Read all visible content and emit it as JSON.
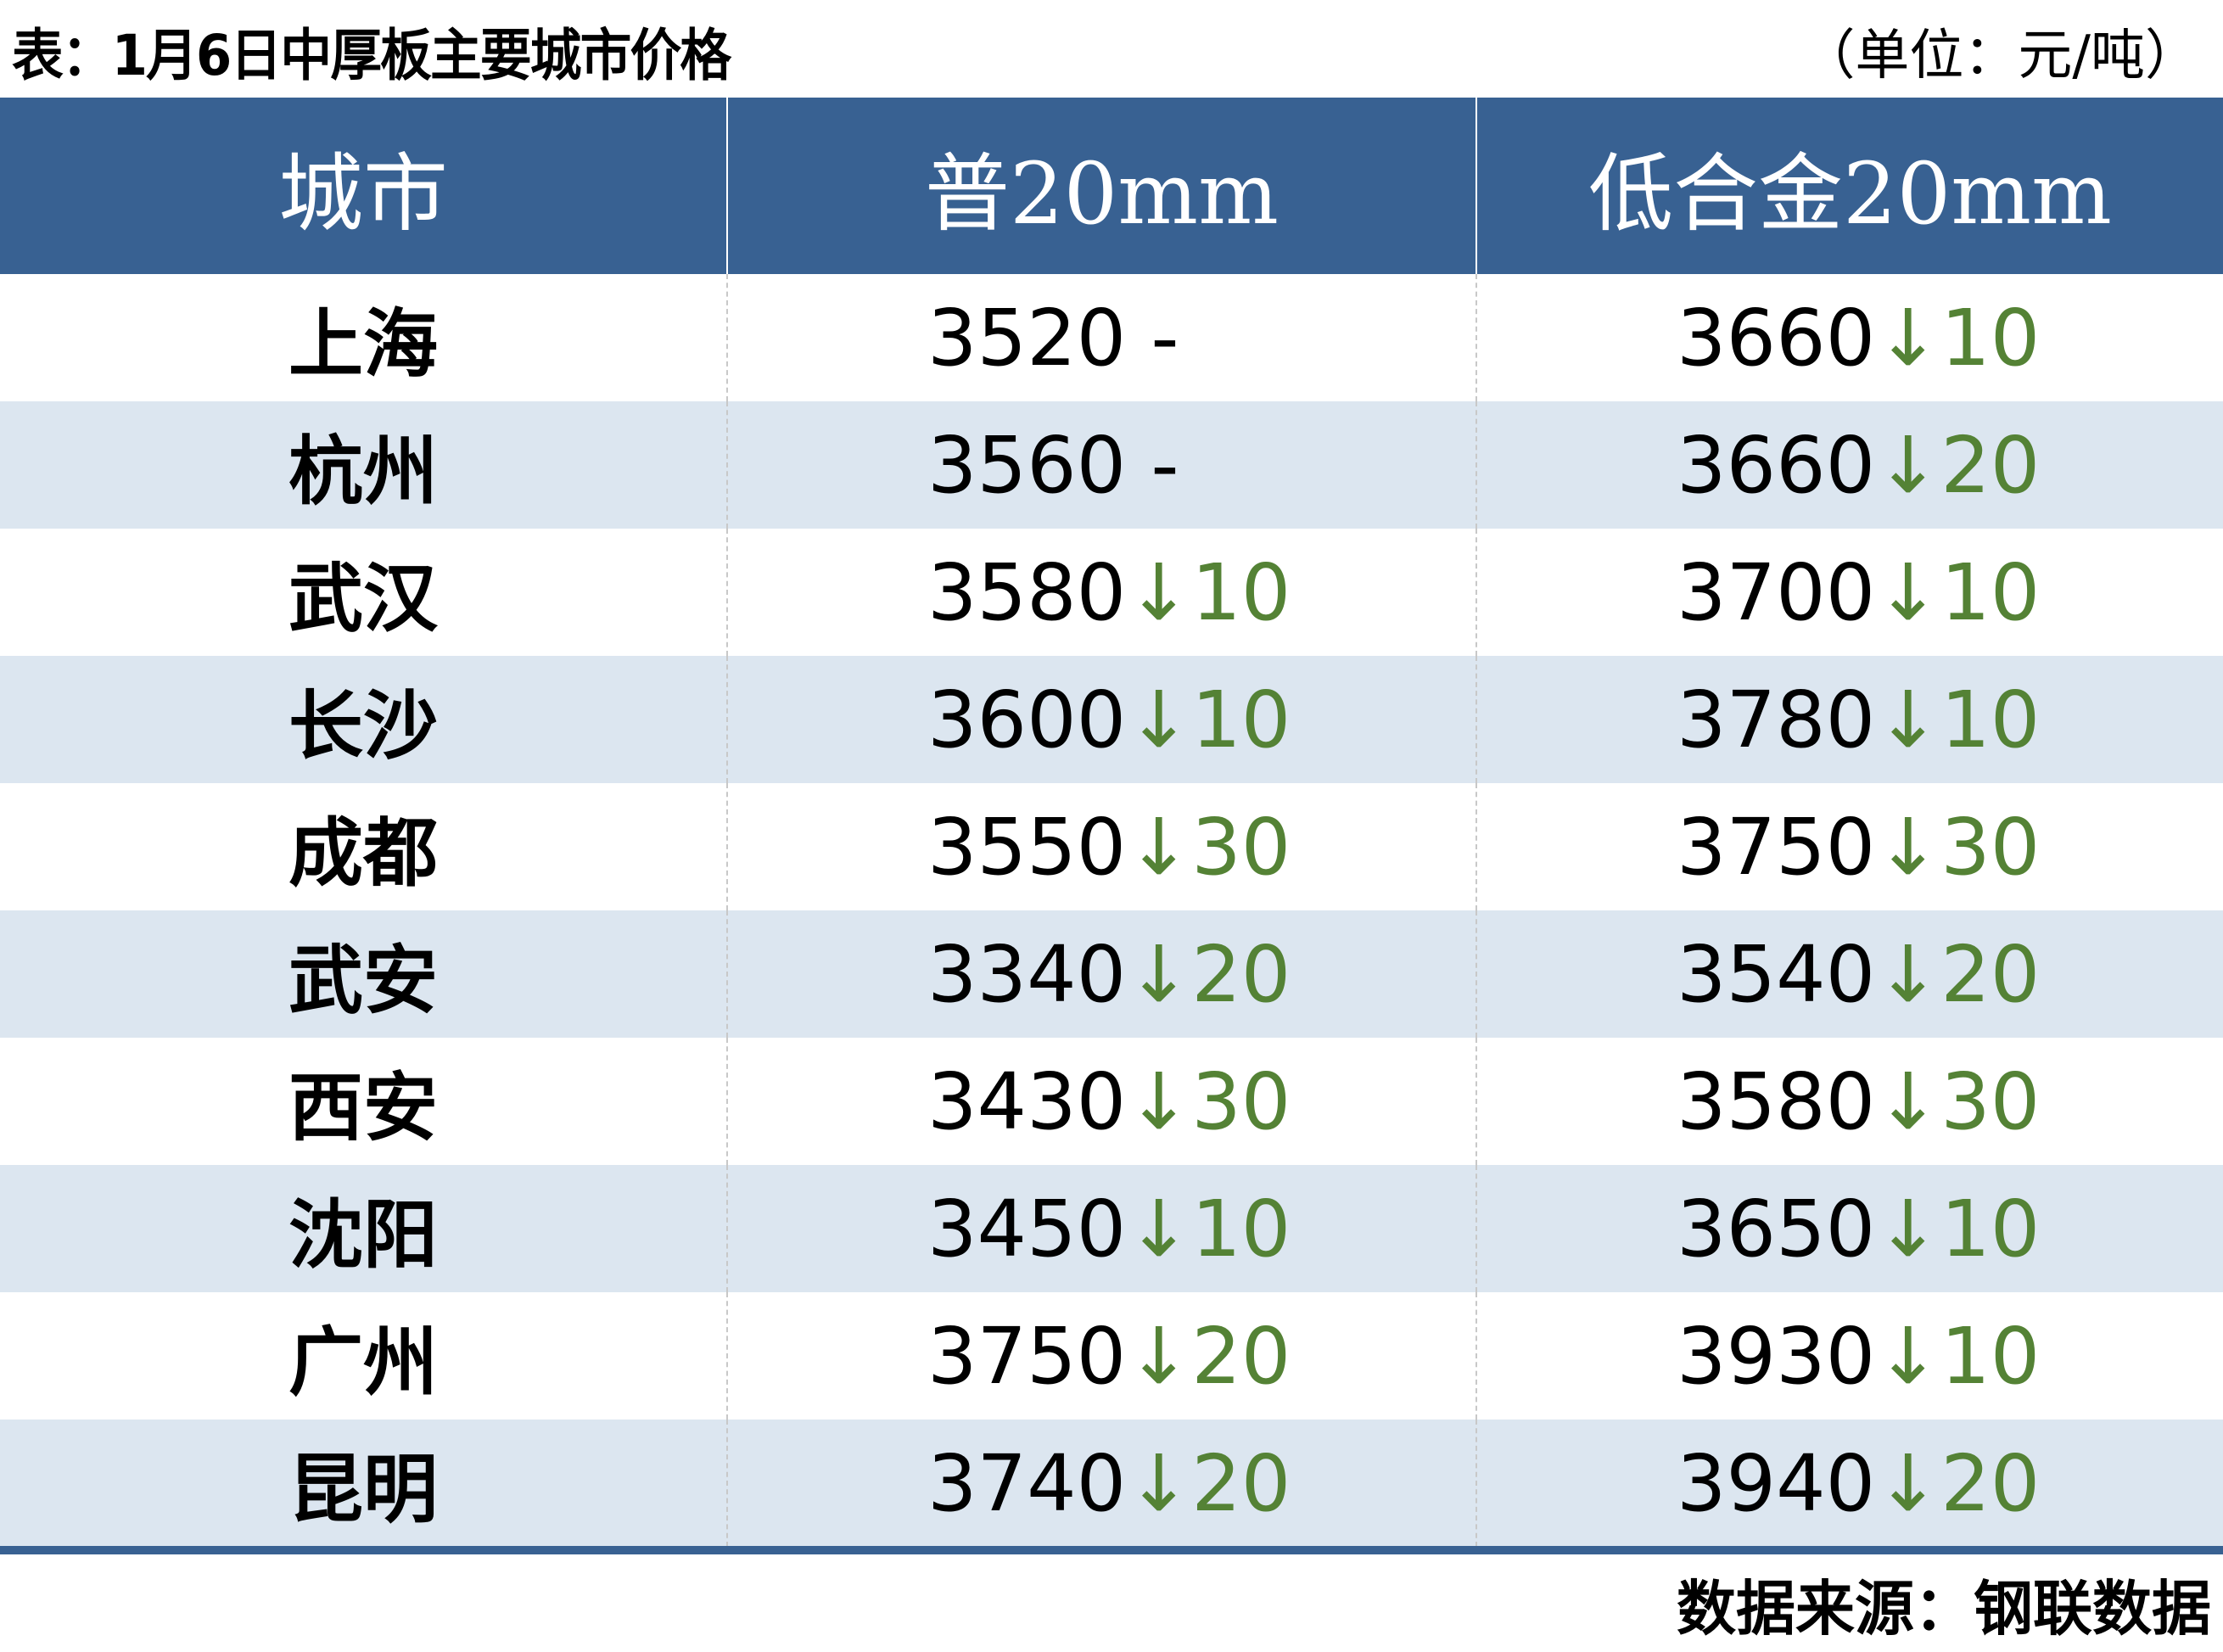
{
  "title": "表：1月6日中厚板主要城市价格",
  "unit": "（单位：元/吨）",
  "colors": {
    "header_bg": "#386192",
    "alt_row_bg": "#dce6f0",
    "down_color": "#548235"
  },
  "columns": [
    "城市",
    "普20mm",
    "低合金20mm"
  ],
  "rows": [
    {
      "city": "上海",
      "p1": "3520",
      "p1_chg": "-",
      "p2": "3660",
      "p2_chg": "↓10"
    },
    {
      "city": "杭州",
      "p1": "3560",
      "p1_chg": "-",
      "p2": "3660",
      "p2_chg": "↓20"
    },
    {
      "city": "武汉",
      "p1": "3580",
      "p1_chg": "↓10",
      "p2": "3700",
      "p2_chg": "↓10"
    },
    {
      "city": "长沙",
      "p1": "3600",
      "p1_chg": "↓10",
      "p2": "3780",
      "p2_chg": "↓10"
    },
    {
      "city": "成都",
      "p1": "3550",
      "p1_chg": "↓30",
      "p2": "3750",
      "p2_chg": "↓30"
    },
    {
      "city": "武安",
      "p1": "3340",
      "p1_chg": "↓20",
      "p2": "3540",
      "p2_chg": "↓20"
    },
    {
      "city": "西安",
      "p1": "3430",
      "p1_chg": "↓30",
      "p2": "3580",
      "p2_chg": "↓30"
    },
    {
      "city": "沈阳",
      "p1": "3450",
      "p1_chg": "↓10",
      "p2": "3650",
      "p2_chg": "↓10"
    },
    {
      "city": "广州",
      "p1": "3750",
      "p1_chg": "↓20",
      "p2": "3930",
      "p2_chg": "↓10"
    },
    {
      "city": "昆明",
      "p1": "3740",
      "p1_chg": "↓20",
      "p2": "3940",
      "p2_chg": "↓20"
    }
  ],
  "source": "数据来源：钢联数据"
}
